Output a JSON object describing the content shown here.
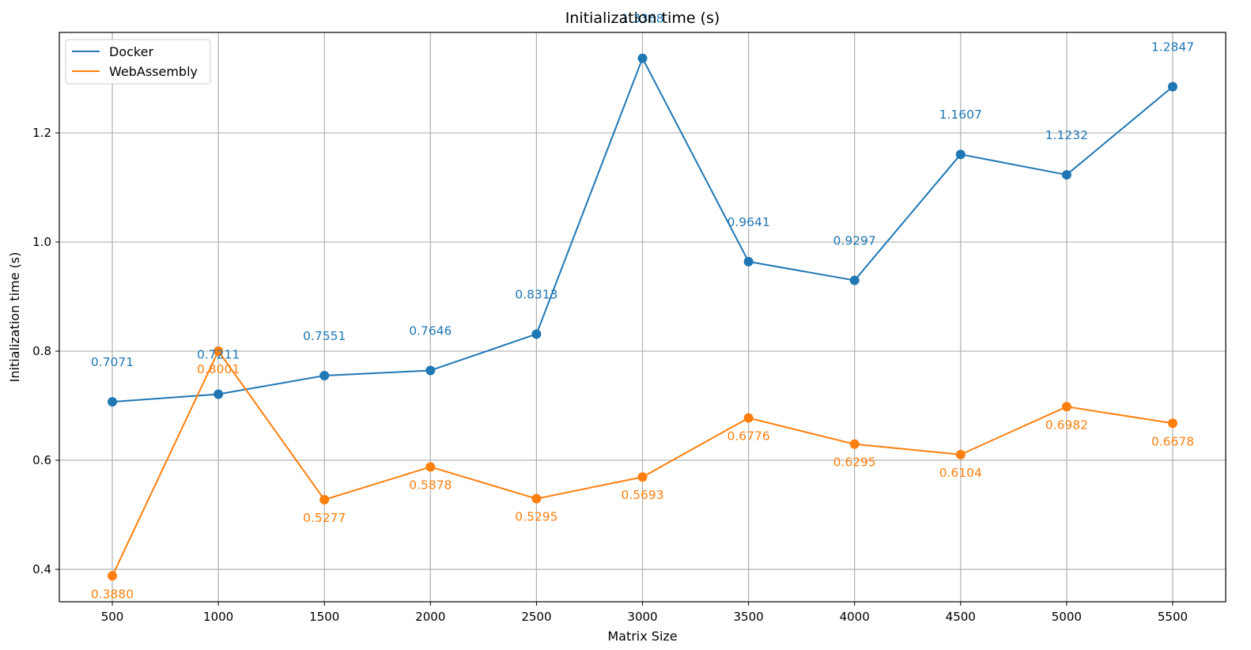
{
  "chart_data": {
    "type": "line",
    "title": "Initialization time (s)",
    "xlabel": "Matrix Size",
    "ylabel": "Initialization time (s)",
    "x": [
      500,
      1000,
      1500,
      2000,
      2500,
      3000,
      3500,
      4000,
      4500,
      5000,
      5500
    ],
    "x_tick_labels": [
      "500",
      "1000",
      "1500",
      "2000",
      "2500",
      "3000",
      "3500",
      "4000",
      "4500",
      "5000",
      "5500"
    ],
    "y_ticks": [
      0.4,
      0.6,
      0.8,
      1.0,
      1.2
    ],
    "y_tick_labels": [
      "0.4",
      "0.6",
      "0.8",
      "1.0",
      "1.2"
    ],
    "xlim": [
      250,
      5750
    ],
    "ylim": [
      0.3406,
      1.3842
    ],
    "grid": true,
    "legend_position": "top-left",
    "series": [
      {
        "name": "Docker",
        "color": "#1f77b4",
        "values": [
          0.7071,
          0.7211,
          0.7551,
          0.7646,
          0.8313,
          1.3368,
          0.9641,
          0.9297,
          1.1607,
          1.1232,
          1.2847
        ],
        "labels": [
          "0.7071",
          "0.7211",
          "0.7551",
          "0.7646",
          "0.8313",
          "1.3368",
          "0.9641",
          "0.9297",
          "1.1607",
          "1.1232",
          "1.2847"
        ]
      },
      {
        "name": "WebAssembly",
        "color": "#ff7f0e",
        "values": [
          0.388,
          0.8001,
          0.5277,
          0.5878,
          0.5295,
          0.5693,
          0.6776,
          0.6295,
          0.6104,
          0.6982,
          0.6678
        ],
        "labels": [
          "0.3880",
          "0.8001",
          "0.5277",
          "0.5878",
          "0.5295",
          "0.5693",
          "0.6776",
          "0.6295",
          "0.6104",
          "0.6982",
          "0.6678"
        ]
      }
    ]
  }
}
